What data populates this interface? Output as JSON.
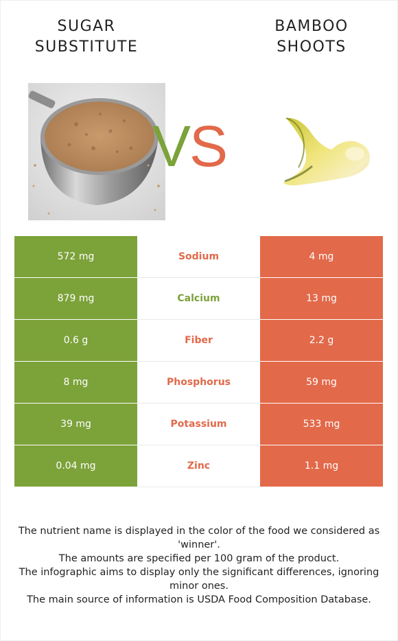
{
  "header": {
    "left_title": "SUGAR\nSUBSTITUTE",
    "right_title": "BAMBOO\nSHOOTS",
    "vs_v": "V",
    "vs_s": "S"
  },
  "colors": {
    "left_food": "#7ca23a",
    "right_food": "#e2694a"
  },
  "rows": [
    {
      "nutrient": "Sodium",
      "left": "572 mg",
      "right": "4 mg",
      "winner": "right"
    },
    {
      "nutrient": "Calcium",
      "left": "879 mg",
      "right": "13 mg",
      "winner": "left"
    },
    {
      "nutrient": "Fiber",
      "left": "0.6 g",
      "right": "2.2 g",
      "winner": "right"
    },
    {
      "nutrient": "Phosphorus",
      "left": "8 mg",
      "right": "59 mg",
      "winner": "right"
    },
    {
      "nutrient": "Potassium",
      "left": "39 mg",
      "right": "533 mg",
      "winner": "right"
    },
    {
      "nutrient": "Zinc",
      "left": "0.04 mg",
      "right": "1.1 mg",
      "winner": "right"
    }
  ],
  "footnotes": [
    "The nutrient name is displayed in the color of the food we considered as 'winner'.",
    "The amounts are specified per 100 gram of the product.",
    "The infographic aims to display only the significant differences, ignoring minor ones.",
    "The main source of information is USDA Food Composition Database."
  ]
}
